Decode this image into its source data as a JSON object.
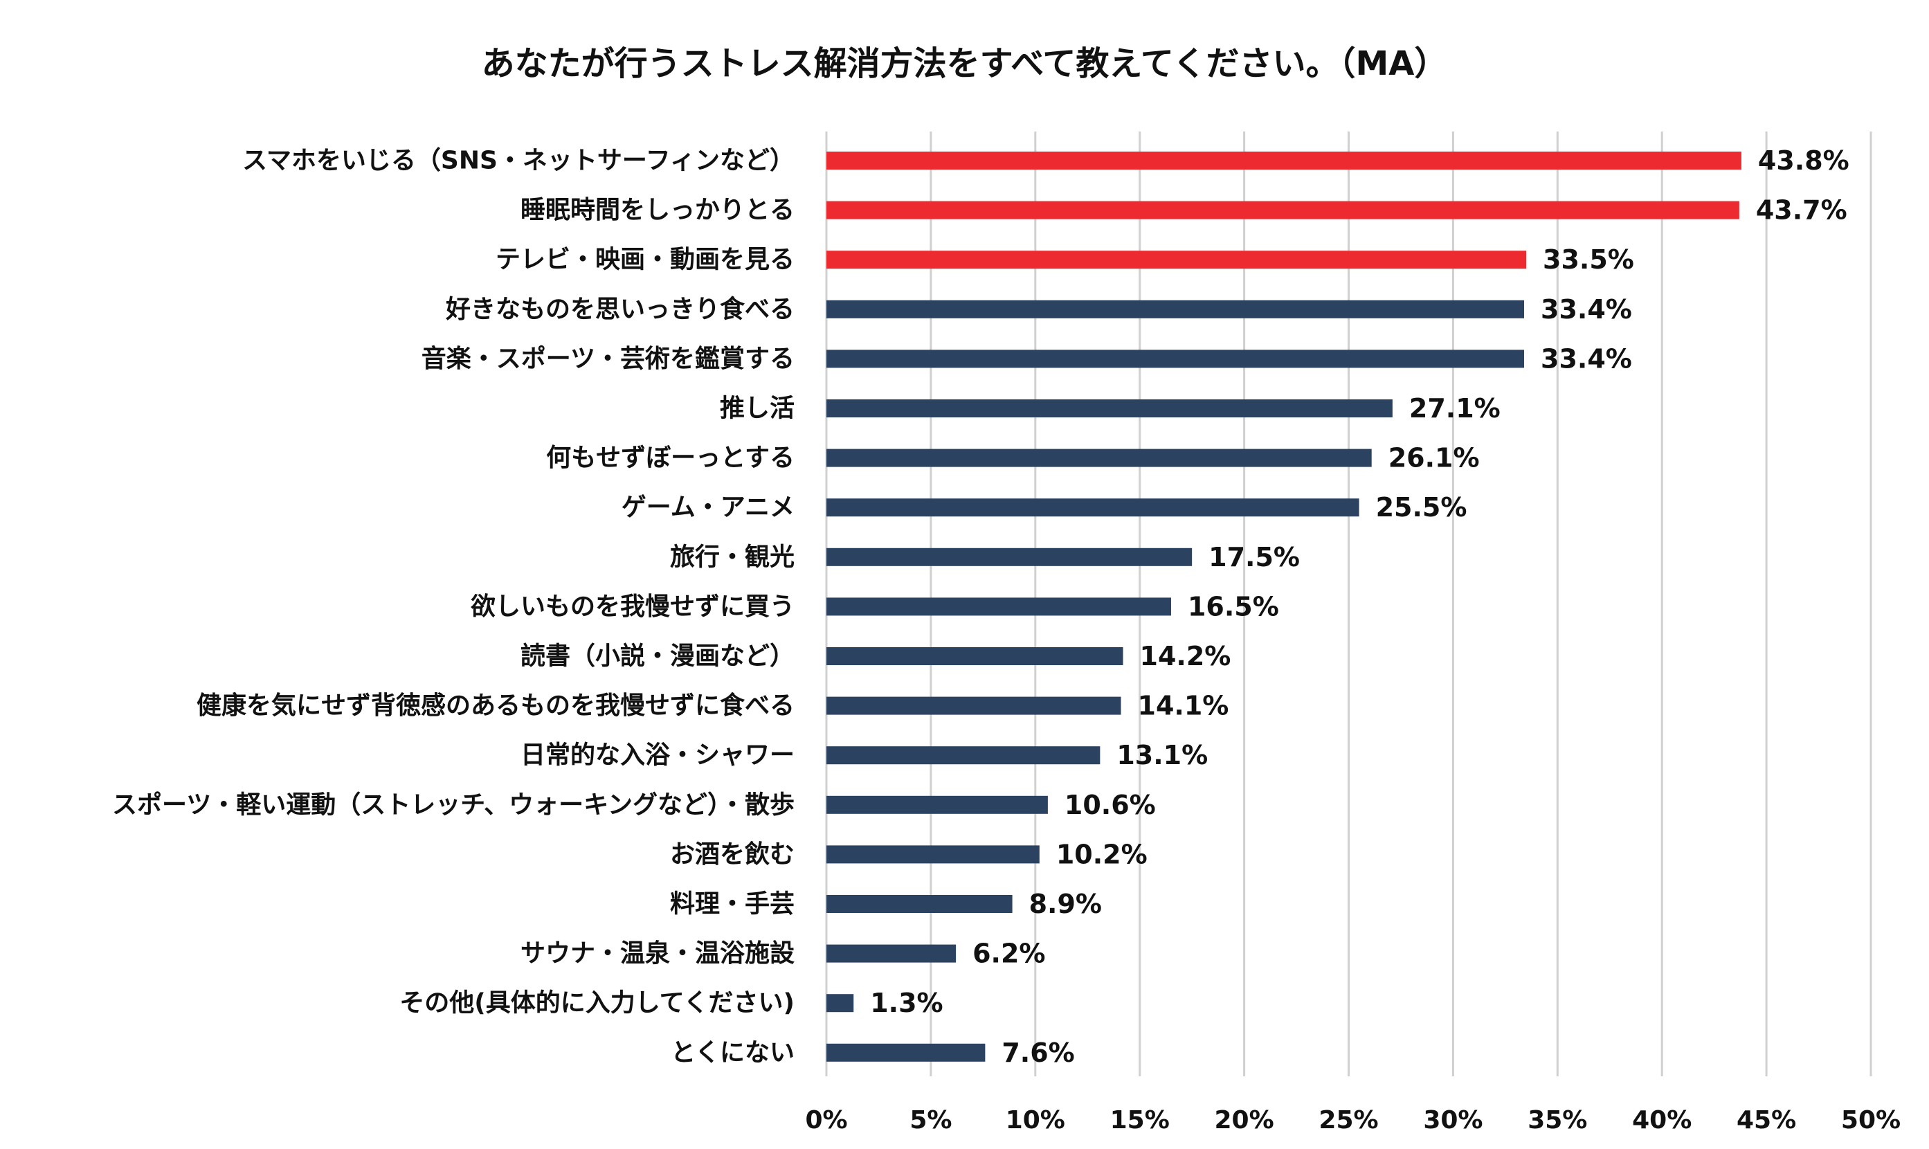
{
  "chart_data": {
    "type": "bar",
    "orientation": "horizontal",
    "title": "あなたが行うストレス解消方法をすべて教えてください。（MA）",
    "xlabel": "",
    "ylabel": "",
    "xlim": [
      0,
      50
    ],
    "x_ticks": [
      0,
      5,
      10,
      15,
      20,
      25,
      30,
      35,
      40,
      45,
      50
    ],
    "x_tick_labels": [
      "0%",
      "5%",
      "10%",
      "15%",
      "20%",
      "25%",
      "30%",
      "35%",
      "40%",
      "45%",
      "50%"
    ],
    "value_suffix": "%",
    "grid": "vertical",
    "legend": "none",
    "colors": {
      "highlight": "#ee2a31",
      "default": "#2b4260"
    },
    "categories": [
      "スマホをいじる（SNS・ネットサーフィンなど）",
      "睡眠時間をしっかりとる",
      "テレビ・映画・動画を見る",
      "好きなものを思いっきり食べる",
      "音楽・スポーツ・芸術を鑑賞する",
      "推し活",
      "何もせずぼーっとする",
      "ゲーム・アニメ",
      "旅行・観光",
      "欲しいものを我慢せずに買う",
      "読書（小説・漫画など）",
      "健康を気にせず背徳感のあるものを我慢せずに食べる",
      "日常的な入浴・シャワー",
      "スポーツ・軽い運動（ストレッチ、ウォーキングなど）・散歩",
      "お酒を飲む",
      "料理・手芸",
      "サウナ・温泉・温浴施設",
      "その他(具体的に入力してください)",
      "とくにない"
    ],
    "values": [
      43.8,
      43.7,
      33.5,
      33.4,
      33.4,
      27.1,
      26.1,
      25.5,
      17.5,
      16.5,
      14.2,
      14.1,
      13.1,
      10.6,
      10.2,
      8.9,
      6.2,
      1.3,
      7.6
    ],
    "value_labels": [
      "43.8%",
      "43.7%",
      "33.5%",
      "33.4%",
      "33.4%",
      "27.1%",
      "26.1%",
      "25.5%",
      "17.5%",
      "16.5%",
      "14.2%",
      "14.1%",
      "13.1%",
      "10.6%",
      "10.2%",
      "8.9%",
      "6.2%",
      "1.3%",
      "7.6%"
    ],
    "highlighted": [
      true,
      true,
      true,
      false,
      false,
      false,
      false,
      false,
      false,
      false,
      false,
      false,
      false,
      false,
      false,
      false,
      false,
      false,
      false
    ]
  }
}
